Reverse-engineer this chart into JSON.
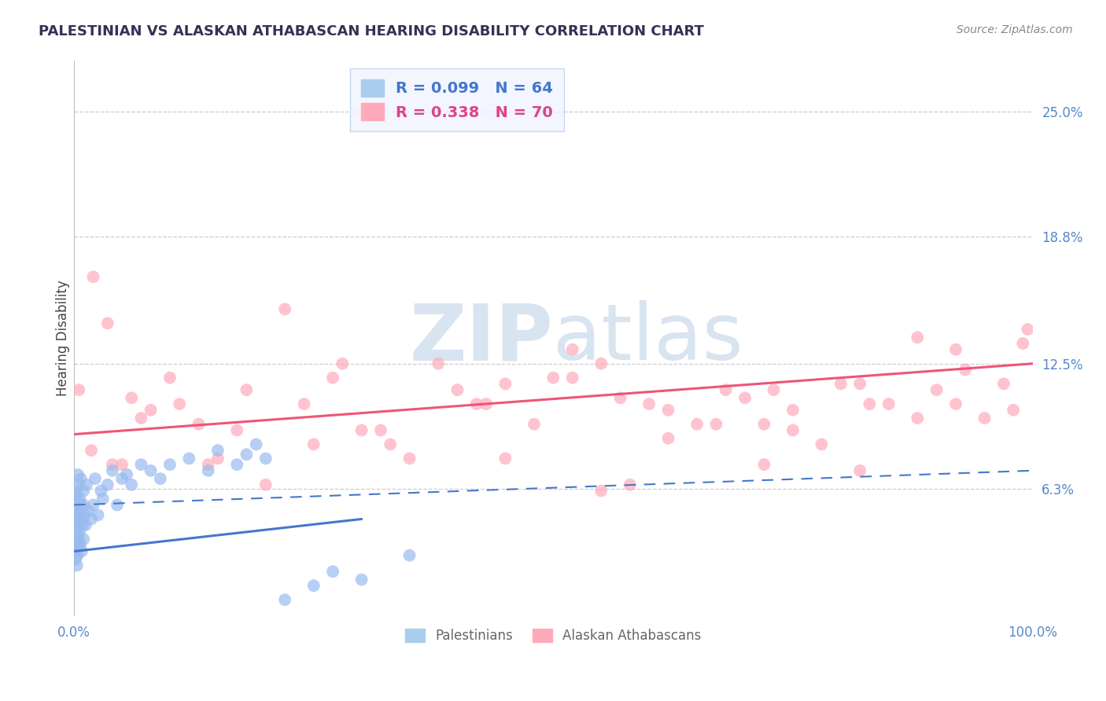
{
  "title": "PALESTINIAN VS ALASKAN ATHABASCAN HEARING DISABILITY CORRELATION CHART",
  "source": "Source: ZipAtlas.com",
  "ylabel": "Hearing Disability",
  "ytick_labels": [
    "6.3%",
    "12.5%",
    "18.8%",
    "25.0%"
  ],
  "ytick_values": [
    6.3,
    12.5,
    18.8,
    25.0
  ],
  "xmin": 0.0,
  "xmax": 100.0,
  "ymin": 0.0,
  "ymax": 27.5,
  "palestinian_R": 0.099,
  "palestinian_N": 64,
  "athabascan_R": 0.338,
  "athabascan_N": 70,
  "blue_dot_color": "#99bbee",
  "pink_dot_color": "#ffaabb",
  "blue_line_color": "#4477cc",
  "pink_line_color": "#ee5577",
  "watermark_color": "#d8e4f0",
  "legend_face": "#f0f4ff",
  "legend_edge": "#bbccee",
  "pink_line_x0": 0.0,
  "pink_line_y0": 9.0,
  "pink_line_x1": 100.0,
  "pink_line_y1": 12.5,
  "blue_solid_x0": 0.0,
  "blue_solid_y0": 3.2,
  "blue_solid_x1": 30.0,
  "blue_solid_y1": 4.8,
  "blue_dash_x0": 0.0,
  "blue_dash_y0": 5.5,
  "blue_dash_x1": 100.0,
  "blue_dash_y1": 7.2,
  "palestinian_x": [
    0.1,
    0.1,
    0.15,
    0.15,
    0.2,
    0.2,
    0.2,
    0.25,
    0.25,
    0.3,
    0.3,
    0.3,
    0.35,
    0.35,
    0.4,
    0.4,
    0.4,
    0.45,
    0.45,
    0.5,
    0.5,
    0.5,
    0.6,
    0.6,
    0.65,
    0.7,
    0.7,
    0.8,
    0.8,
    0.9,
    1.0,
    1.0,
    1.1,
    1.2,
    1.3,
    1.5,
    1.8,
    2.0,
    2.2,
    2.5,
    2.8,
    3.0,
    3.5,
    4.0,
    4.5,
    5.0,
    5.5,
    6.0,
    7.0,
    8.0,
    9.0,
    10.0,
    12.0,
    14.0,
    15.0,
    17.0,
    18.0,
    19.0,
    20.0,
    22.0,
    25.0,
    27.0,
    30.0,
    35.0
  ],
  "palestinian_y": [
    3.2,
    4.5,
    2.8,
    5.1,
    3.5,
    4.8,
    6.0,
    3.8,
    5.5,
    2.5,
    4.2,
    6.2,
    3.0,
    5.8,
    4.0,
    3.5,
    7.0,
    4.5,
    5.2,
    3.8,
    5.0,
    6.5,
    4.2,
    5.8,
    3.5,
    4.8,
    6.8,
    3.2,
    5.5,
    4.5,
    3.8,
    6.2,
    5.0,
    4.5,
    6.5,
    5.2,
    4.8,
    5.5,
    6.8,
    5.0,
    6.2,
    5.8,
    6.5,
    7.2,
    5.5,
    6.8,
    7.0,
    6.5,
    7.5,
    7.2,
    6.8,
    7.5,
    7.8,
    7.2,
    8.2,
    7.5,
    8.0,
    8.5,
    7.8,
    0.8,
    1.5,
    2.2,
    1.8,
    3.0
  ],
  "athabascan_x": [
    0.5,
    2.0,
    3.5,
    5.0,
    8.0,
    10.0,
    13.0,
    15.0,
    17.0,
    20.0,
    22.0,
    24.0,
    27.0,
    30.0,
    33.0,
    35.0,
    38.0,
    40.0,
    43.0,
    45.0,
    48.0,
    50.0,
    52.0,
    55.0,
    58.0,
    60.0,
    62.0,
    65.0,
    68.0,
    70.0,
    72.0,
    75.0,
    78.0,
    80.0,
    82.0,
    85.0,
    88.0,
    90.0,
    92.0,
    95.0,
    97.0,
    98.0,
    99.0,
    99.5,
    1.0,
    1.8,
    4.0,
    7.0,
    11.0,
    18.0,
    25.0,
    32.0,
    42.0,
    52.0,
    62.0,
    72.0,
    82.0,
    92.0,
    28.0,
    45.0,
    57.0,
    67.0,
    73.0,
    83.0,
    88.0,
    93.0,
    6.0,
    14.0,
    55.0,
    75.0
  ],
  "athabascan_y": [
    11.2,
    16.8,
    14.5,
    7.5,
    10.2,
    11.8,
    9.5,
    7.8,
    9.2,
    6.5,
    15.2,
    10.5,
    11.8,
    9.2,
    8.5,
    7.8,
    12.5,
    11.2,
    10.5,
    7.8,
    9.5,
    11.8,
    13.2,
    12.5,
    6.5,
    10.5,
    8.8,
    9.5,
    11.2,
    10.8,
    7.5,
    9.2,
    8.5,
    11.5,
    7.2,
    10.5,
    9.8,
    11.2,
    10.5,
    9.8,
    11.5,
    10.2,
    13.5,
    14.2,
    5.5,
    8.2,
    7.5,
    9.8,
    10.5,
    11.2,
    8.5,
    9.2,
    10.5,
    11.8,
    10.2,
    9.5,
    11.5,
    13.2,
    12.5,
    11.5,
    10.8,
    9.5,
    11.2,
    10.5,
    13.8,
    12.2,
    10.8,
    7.5,
    6.2,
    10.2
  ]
}
